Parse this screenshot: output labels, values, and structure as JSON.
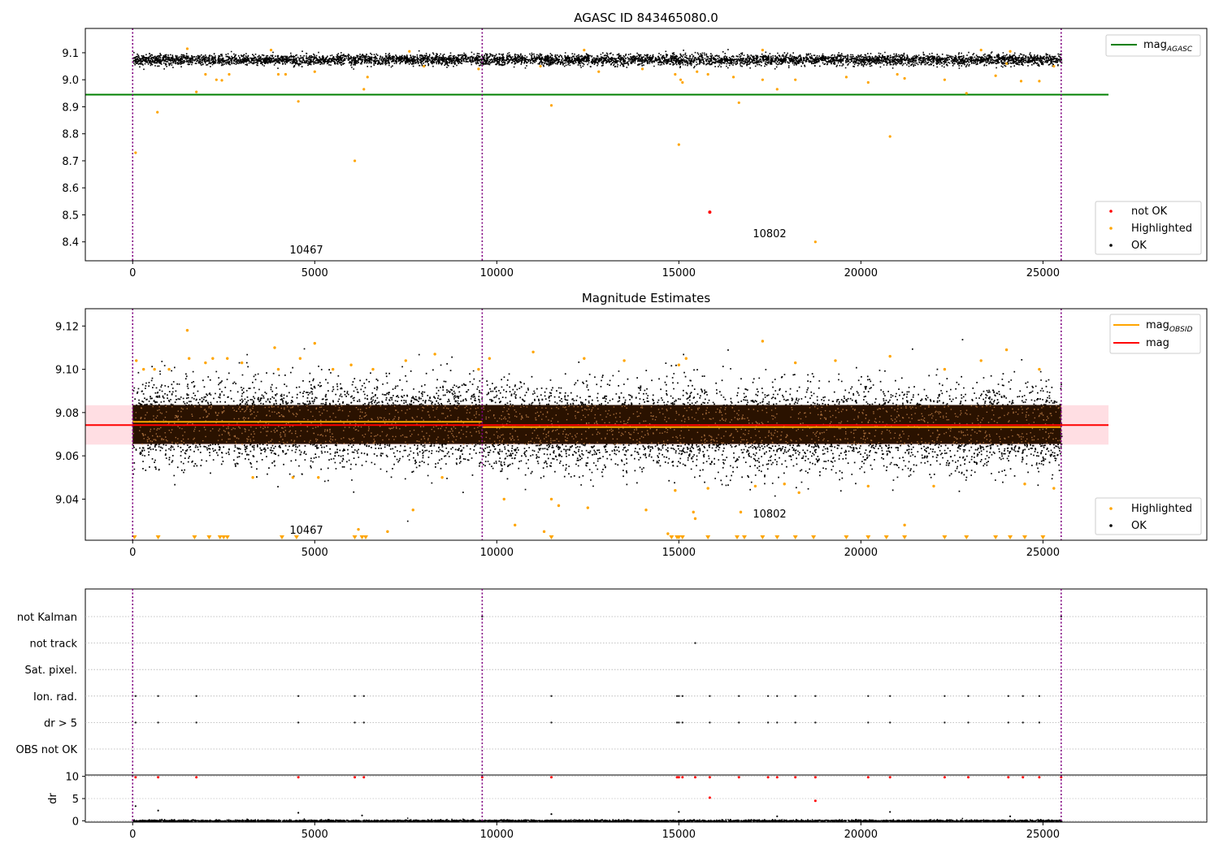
{
  "chart_data": [
    {
      "type": "scatter",
      "title": "AGASC ID 843465080.0",
      "xlabel": "",
      "ylabel": "",
      "xlim": [
        -1300,
        29500
      ],
      "ylim": [
        8.33,
        9.19
      ],
      "xticks": [
        "0",
        "5000",
        "10000",
        "15000",
        "20000",
        "25000"
      ],
      "xtick_values": [
        0,
        5000,
        10000,
        15000,
        20000,
        25000
      ],
      "yticks": [
        "8.4",
        "8.5",
        "8.6",
        "8.7",
        "8.8",
        "8.9",
        "9.0",
        "9.1"
      ],
      "ytick_values": [
        8.4,
        8.5,
        8.6,
        8.7,
        8.8,
        8.9,
        9.0,
        9.1
      ],
      "obsid_boundaries": [
        0,
        9600,
        25500
      ],
      "annotations": [
        {
          "text": "10467",
          "x": 4800,
          "y": 8.37
        },
        {
          "text": "10802",
          "x": 17500,
          "y": 8.43
        }
      ],
      "mag_agasc": {
        "label": "mag",
        "sub": "AGASC",
        "value": 8.945,
        "x_range": [
          -1300,
          26800
        ],
        "color": "#008000"
      },
      "ok_band": {
        "mean": 9.076,
        "spread": 0.03
      },
      "highlighted_points": [
        [
          80,
          8.73
        ],
        [
          680,
          8.88
        ],
        [
          1750,
          8.955
        ],
        [
          2000,
          9.02
        ],
        [
          2300,
          9.0
        ],
        [
          2450,
          8.998
        ],
        [
          2650,
          9.02
        ],
        [
          4000,
          9.02
        ],
        [
          4200,
          9.02
        ],
        [
          4550,
          8.92
        ],
        [
          5000,
          9.03
        ],
        [
          6100,
          8.7
        ],
        [
          6350,
          8.965
        ],
        [
          6450,
          9.01
        ],
        [
          8000,
          9.05
        ],
        [
          9500,
          9.04
        ],
        [
          11200,
          9.05
        ],
        [
          11500,
          8.905
        ],
        [
          12800,
          9.03
        ],
        [
          14000,
          9.04
        ],
        [
          14900,
          9.02
        ],
        [
          15000,
          8.76
        ],
        [
          15050,
          9.0
        ],
        [
          15100,
          8.99
        ],
        [
          15500,
          9.03
        ],
        [
          15800,
          9.02
        ],
        [
          16500,
          9.01
        ],
        [
          16650,
          8.915
        ],
        [
          17300,
          9.0
        ],
        [
          17700,
          8.965
        ],
        [
          18200,
          9.0
        ],
        [
          18750,
          8.4
        ],
        [
          19600,
          9.01
        ],
        [
          20200,
          8.99
        ],
        [
          20800,
          8.79
        ],
        [
          21000,
          9.02
        ],
        [
          21200,
          9.005
        ],
        [
          22300,
          9.0
        ],
        [
          22900,
          8.95
        ],
        [
          23700,
          9.015
        ],
        [
          24000,
          9.06
        ],
        [
          24400,
          8.995
        ],
        [
          24900,
          8.995
        ],
        [
          25300,
          9.05
        ],
        [
          1500,
          9.115
        ],
        [
          3800,
          9.11
        ],
        [
          7600,
          9.105
        ],
        [
          12400,
          9.11
        ],
        [
          17300,
          9.11
        ],
        [
          23300,
          9.11
        ],
        [
          24100,
          9.105
        ]
      ],
      "notok_points": [
        [
          15850,
          8.51
        ]
      ],
      "legends": {
        "top": [
          {
            "label": "mag",
            "sub": "AGASC",
            "color": "#008000"
          }
        ],
        "bottom": [
          {
            "label": "not OK",
            "color": "#ff0000"
          },
          {
            "label": "Highlighted",
            "color": "#ffa500"
          },
          {
            "label": "OK",
            "color": "#000000"
          }
        ]
      }
    },
    {
      "type": "scatter",
      "title": "Magnitude Estimates",
      "xlabel": "",
      "ylabel": "",
      "xlim": [
        -1300,
        29500
      ],
      "ylim": [
        9.021,
        9.128
      ],
      "xticks": [
        "0",
        "5000",
        "10000",
        "15000",
        "20000",
        "25000"
      ],
      "xtick_values": [
        0,
        5000,
        10000,
        15000,
        20000,
        25000
      ],
      "yticks": [
        "9.04",
        "9.06",
        "9.08",
        "9.10",
        "9.12"
      ],
      "ytick_values": [
        9.04,
        9.06,
        9.08,
        9.1,
        9.12
      ],
      "obsid_boundaries": [
        0,
        9600,
        25500
      ],
      "annotations": [
        {
          "text": "10467",
          "x": 4800,
          "y": 9.026
        },
        {
          "text": "10802",
          "x": 17500,
          "y": 9.033
        }
      ],
      "mag_obsid": [
        {
          "x_range": [
            0,
            9600
          ],
          "value": 9.0757
        },
        {
          "x_range": [
            9600,
            25500
          ],
          "value": 9.0733
        }
      ],
      "mag": {
        "value": 9.0742,
        "band": [
          9.0652,
          9.0834
        ],
        "x_range": [
          -1300,
          26800
        ]
      },
      "dense_band": {
        "low": 9.0655,
        "high": 9.0835
      },
      "highlighted_points": [
        [
          100,
          9.104
        ],
        [
          300,
          9.1
        ],
        [
          600,
          9.1
        ],
        [
          1000,
          9.1
        ],
        [
          1500,
          9.118
        ],
        [
          1550,
          9.105
        ],
        [
          2000,
          9.103
        ],
        [
          2600,
          9.105
        ],
        [
          3000,
          9.103
        ],
        [
          3900,
          9.11
        ],
        [
          4000,
          9.1
        ],
        [
          4400,
          9.05
        ],
        [
          4600,
          9.105
        ],
        [
          5000,
          9.112
        ],
        [
          5100,
          9.05
        ],
        [
          5500,
          9.1
        ],
        [
          6000,
          9.102
        ],
        [
          6600,
          9.1
        ],
        [
          7500,
          9.104
        ],
        [
          7700,
          9.035
        ],
        [
          8300,
          9.107
        ],
        [
          8500,
          9.05
        ],
        [
          9500,
          9.1
        ],
        [
          9800,
          9.105
        ],
        [
          10200,
          9.04
        ],
        [
          10500,
          9.028
        ],
        [
          11000,
          9.108
        ],
        [
          11300,
          9.025
        ],
        [
          11500,
          9.04
        ],
        [
          11700,
          9.037
        ],
        [
          12400,
          9.105
        ],
        [
          12500,
          9.036
        ],
        [
          13500,
          9.104
        ],
        [
          14100,
          9.035
        ],
        [
          14700,
          9.024
        ],
        [
          14900,
          9.044
        ],
        [
          15000,
          9.102
        ],
        [
          15200,
          9.105
        ],
        [
          15400,
          9.034
        ],
        [
          15450,
          9.031
        ],
        [
          15800,
          9.045
        ],
        [
          16700,
          9.034
        ],
        [
          17100,
          9.046
        ],
        [
          17300,
          9.113
        ],
        [
          17900,
          9.047
        ],
        [
          18200,
          9.103
        ],
        [
          18300,
          9.043
        ],
        [
          19300,
          9.104
        ],
        [
          20200,
          9.046
        ],
        [
          20800,
          9.106
        ],
        [
          21200,
          9.028
        ],
        [
          22000,
          9.046
        ],
        [
          22300,
          9.1
        ],
        [
          23300,
          9.104
        ],
        [
          24000,
          9.109
        ],
        [
          24500,
          9.047
        ],
        [
          25300,
          9.045
        ],
        [
          24900,
          9.1
        ],
        [
          2200,
          9.105
        ],
        [
          3300,
          9.05
        ],
        [
          6200,
          9.026
        ],
        [
          7000,
          9.025
        ]
      ],
      "clipped_low_x": [
        50,
        700,
        1700,
        2100,
        2400,
        2500,
        2600,
        4100,
        4500,
        6100,
        6300,
        6400,
        11500,
        14800,
        14950,
        15000,
        15100,
        15800,
        16600,
        16800,
        17300,
        17700,
        18200,
        18700,
        19600,
        20200,
        20700,
        21200,
        22300,
        22900,
        23700,
        24100,
        24500,
        25000
      ],
      "legends": {
        "top": [
          {
            "label": "mag",
            "sub": "OBSID",
            "color": "#ffa500"
          },
          {
            "label": "mag",
            "sub": "",
            "color": "#ff0000"
          }
        ],
        "bottom": [
          {
            "label": "Highlighted",
            "color": "#ffa500"
          },
          {
            "label": "OK",
            "color": "#000000"
          }
        ]
      }
    },
    {
      "type": "scatter",
      "title": "",
      "xlim": [
        -1300,
        29500
      ],
      "xticks": [
        "0",
        "5000",
        "10000",
        "15000",
        "20000",
        "25000"
      ],
      "xtick_values": [
        0,
        5000,
        10000,
        15000,
        20000,
        25000
      ],
      "flag_categories": [
        "not Kalman",
        "not track",
        "Sat. pixel.",
        "Ion. rad.",
        "dr > 5",
        "OBS not OK"
      ],
      "flag_points": {
        "not Kalman": [
          9600,
          25500
        ],
        "not track": [
          15450
        ],
        "Sat. pixel.": [],
        "Ion. rad.": [
          80,
          700,
          1750,
          4550,
          6100,
          6350,
          11500,
          14950,
          15000,
          15100,
          15850,
          16650,
          17450,
          17700,
          18200,
          18750,
          20200,
          20800,
          22300,
          22950,
          24050,
          24450,
          24900
        ],
        "dr > 5": [
          80,
          700,
          1750,
          4550,
          6100,
          6350,
          11500,
          14950,
          15000,
          15100,
          15850,
          16650,
          17450,
          17700,
          18200,
          18750,
          20200,
          20800,
          22300,
          22950,
          24050,
          24450,
          24900
        ],
        "OBS not OK": []
      },
      "obsid_boundaries": [
        0,
        9600,
        25500
      ],
      "dr_ylabel": "dr",
      "dr_yticks": [
        "0",
        "5",
        "10"
      ],
      "dr_ytick_values": [
        0,
        5,
        10
      ],
      "dr_ylim": [
        -0.3,
        10.3
      ],
      "dr_high_points": [
        [
          80,
          9.8
        ],
        [
          700,
          9.8
        ],
        [
          1750,
          9.8
        ],
        [
          4550,
          9.8
        ],
        [
          6100,
          9.8
        ],
        [
          6350,
          9.8
        ],
        [
          9600,
          9.8
        ],
        [
          11500,
          9.8
        ],
        [
          14950,
          9.8
        ],
        [
          15000,
          9.8
        ],
        [
          15100,
          9.8
        ],
        [
          15450,
          9.8
        ],
        [
          15850,
          9.8
        ],
        [
          16650,
          9.8
        ],
        [
          17450,
          9.8
        ],
        [
          17700,
          9.8
        ],
        [
          18200,
          9.8
        ],
        [
          18750,
          9.8
        ],
        [
          20200,
          9.8
        ],
        [
          20800,
          9.8
        ],
        [
          22300,
          9.8
        ],
        [
          22950,
          9.8
        ],
        [
          24050,
          9.8
        ],
        [
          24450,
          9.8
        ],
        [
          24900,
          9.8
        ],
        [
          25500,
          9.8
        ],
        [
          15850,
          5.2
        ],
        [
          18750,
          4.5
        ]
      ],
      "dr_scatter_points": [
        [
          80,
          3.3
        ],
        [
          700,
          2.3
        ],
        [
          4550,
          1.8
        ],
        [
          6300,
          1.2
        ],
        [
          11500,
          1.5
        ],
        [
          15000,
          2.0
        ],
        [
          17700,
          1.0
        ],
        [
          20800,
          2.0
        ],
        [
          24100,
          1.0
        ]
      ]
    }
  ]
}
